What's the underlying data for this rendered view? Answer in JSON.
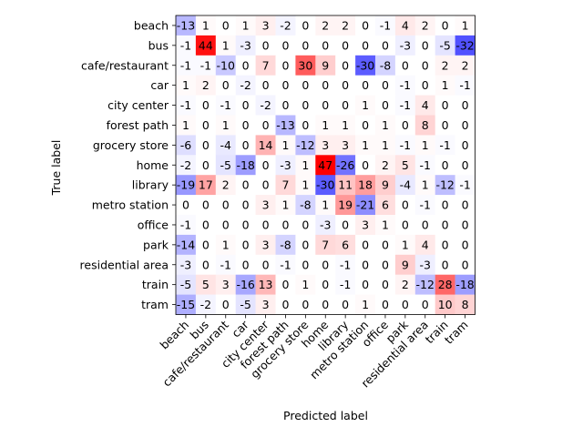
{
  "chart_data": {
    "type": "heatmap",
    "xlabel": "Predicted label",
    "ylabel": "True label",
    "colormap": "bwr",
    "color_range": [
      -47,
      47
    ],
    "x_categories": [
      "beach",
      "bus",
      "cafe/restaurant",
      "car",
      "city center",
      "forest path",
      "grocery store",
      "home",
      "library",
      "metro station",
      "office",
      "park",
      "residential area",
      "train",
      "tram"
    ],
    "y_categories": [
      "beach",
      "bus",
      "cafe/restaurant",
      "car",
      "city center",
      "forest path",
      "grocery store",
      "home",
      "library",
      "metro station",
      "office",
      "park",
      "residential area",
      "train",
      "tram"
    ],
    "values": [
      [
        -13,
        1,
        0,
        1,
        3,
        -2,
        0,
        2,
        2,
        0,
        -1,
        4,
        2,
        0,
        1
      ],
      [
        -1,
        44,
        1,
        -3,
        0,
        0,
        0,
        0,
        0,
        0,
        0,
        -3,
        0,
        -5,
        -32
      ],
      [
        -1,
        -1,
        -10,
        0,
        7,
        0,
        30,
        9,
        0,
        -30,
        -8,
        0,
        0,
        2,
        2
      ],
      [
        1,
        2,
        0,
        -2,
        0,
        0,
        0,
        0,
        0,
        0,
        0,
        -1,
        0,
        1,
        -1
      ],
      [
        -1,
        0,
        -1,
        0,
        -2,
        0,
        0,
        0,
        0,
        1,
        0,
        -1,
        4,
        0,
        0
      ],
      [
        1,
        0,
        1,
        0,
        0,
        -13,
        0,
        1,
        1,
        0,
        1,
        0,
        8,
        0,
        0
      ],
      [
        -6,
        0,
        -4,
        0,
        14,
        1,
        -12,
        3,
        3,
        1,
        1,
        -1,
        1,
        -1,
        0
      ],
      [
        -2,
        0,
        -5,
        -18,
        0,
        -3,
        1,
        47,
        -26,
        0,
        2,
        5,
        -1,
        0,
        0
      ],
      [
        -19,
        17,
        2,
        0,
        0,
        7,
        1,
        -30,
        11,
        18,
        9,
        -4,
        1,
        -12,
        -1
      ],
      [
        0,
        0,
        0,
        0,
        3,
        1,
        -8,
        1,
        19,
        -21,
        6,
        0,
        -1,
        0,
        0
      ],
      [
        -1,
        0,
        0,
        0,
        0,
        0,
        0,
        -3,
        0,
        3,
        1,
        0,
        0,
        0,
        0
      ],
      [
        -14,
        0,
        1,
        0,
        3,
        -8,
        0,
        7,
        6,
        0,
        0,
        1,
        4,
        0,
        0
      ],
      [
        -3,
        0,
        -1,
        0,
        0,
        -1,
        0,
        0,
        -1,
        0,
        0,
        9,
        -3,
        0,
        0
      ],
      [
        -5,
        5,
        3,
        -16,
        13,
        0,
        1,
        0,
        -1,
        0,
        0,
        2,
        -12,
        28,
        -18
      ],
      [
        -15,
        -2,
        0,
        -5,
        3,
        0,
        0,
        0,
        0,
        1,
        0,
        0,
        0,
        10,
        8
      ]
    ]
  }
}
